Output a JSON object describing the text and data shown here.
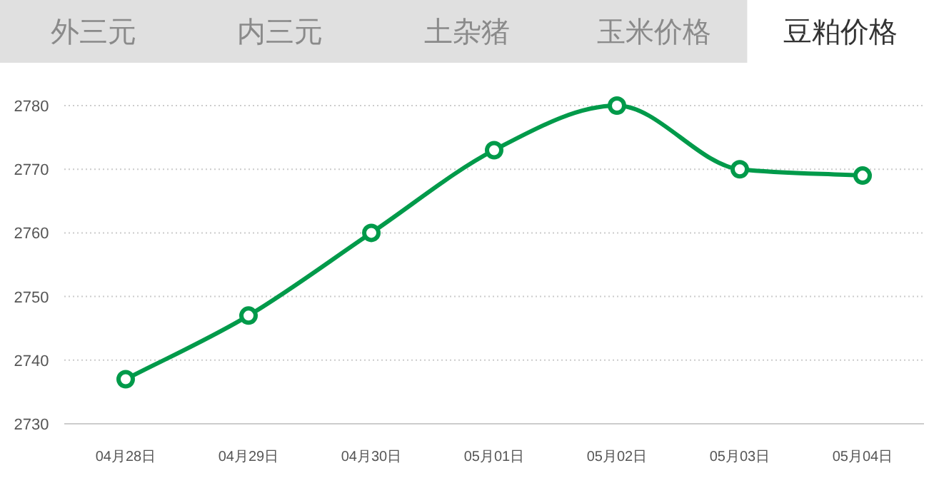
{
  "chart_data": {
    "type": "line",
    "title": "豆粕价格",
    "annotations": [
      "外三元",
      "内三元",
      "土杂猪",
      "玉米价格"
    ],
    "categories": [
      "04月28日",
      "04月29日",
      "04月30日",
      "05月01日",
      "05月02日",
      "05月03日",
      "05月04日"
    ],
    "values": [
      2737,
      2747,
      2760,
      2773,
      2780,
      2770,
      2769
    ],
    "color": "#009a4a",
    "ylim": [
      2730,
      2780
    ],
    "yticks": [
      2730,
      2740,
      2750,
      2760,
      2770,
      2780
    ],
    "grid": "y",
    "marker": "circle",
    "line_style": "solid"
  }
}
